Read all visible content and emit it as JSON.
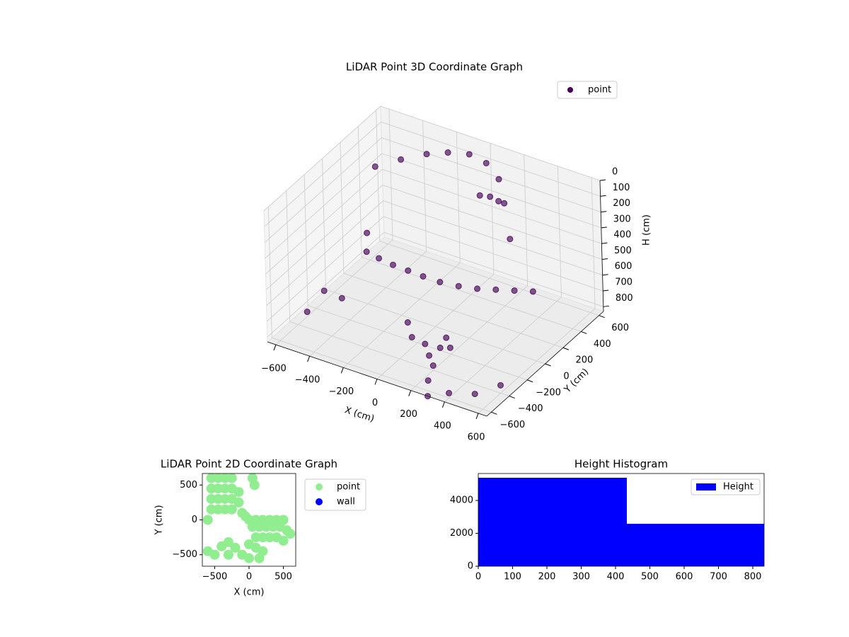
{
  "chart_data": [
    {
      "type": "scatter3d",
      "title": "LiDAR Point 3D Coordinate Graph",
      "xlabel": "X (cm)",
      "ylabel": "Y (cm)",
      "zlabel": "H (cm)",
      "xlim": [
        -650,
        650
      ],
      "ylim": [
        -650,
        650
      ],
      "zlim": [
        0,
        830
      ],
      "z_inverted": true,
      "xticks": [
        {
          "value": -600,
          "label": "−600"
        },
        {
          "value": -400,
          "label": "−400"
        },
        {
          "value": -200,
          "label": "−200"
        },
        0,
        200,
        400,
        600
      ],
      "yticks": [
        {
          "value": -600,
          "label": "−600"
        },
        {
          "value": -400,
          "label": "−400"
        },
        {
          "value": -200,
          "label": "−200"
        },
        0,
        200,
        400,
        600
      ],
      "zticks": [
        0,
        100,
        200,
        300,
        400,
        500,
        600,
        700,
        800
      ],
      "grid": true,
      "legend": "upper right",
      "series": [
        {
          "name": "point",
          "color": "#440154",
          "x": [
            -400,
            -300,
            -200,
            -100,
            0,
            100,
            200,
            300,
            400,
            500,
            600,
            -500,
            -400,
            -300,
            -200,
            -100,
            0,
            100,
            100,
            150,
            200,
            50,
            0,
            50,
            100,
            150,
            200,
            250,
            -600,
            -500,
            -550,
            400,
            500,
            600,
            300,
            200,
            250,
            300,
            -450,
            350
          ],
          "y": [
            0,
            -50,
            -80,
            -100,
            -120,
            -120,
            -100,
            -80,
            -60,
            -40,
            -20,
            300,
            400,
            500,
            550,
            600,
            600,
            550,
            450,
            450,
            420,
            430,
            -300,
            -350,
            -300,
            -350,
            -250,
            -300,
            -300,
            -100,
            -200,
            -600,
            -500,
            -400,
            -500,
            -400,
            -550,
            -650,
            100,
            200
          ],
          "z": [
            500,
            480,
            470,
            460,
            450,
            450,
            450,
            440,
            420,
            400,
            380,
            150,
            120,
            100,
            80,
            80,
            100,
            140,
            200,
            210,
            190,
            200,
            650,
            700,
            750,
            780,
            700,
            720,
            800,
            780,
            700,
            800,
            820,
            780,
            600,
            800,
            800,
            830,
            450,
            250
          ]
        }
      ]
    },
    {
      "type": "scatter",
      "title": "LiDAR Point 2D Coordinate Graph",
      "xlabel": "X (cm)",
      "ylabel": "Y (cm)",
      "xlim": [
        -680,
        680
      ],
      "ylim": [
        -665,
        665
      ],
      "xticks": [
        {
          "value": -500,
          "label": "−500"
        },
        0,
        500
      ],
      "yticks": [
        {
          "value": -500,
          "label": "−500"
        },
        0,
        500
      ],
      "legend": "outside upper right",
      "series": [
        {
          "name": "point",
          "color": "#90ee90",
          "x": [
            -550,
            -450,
            -350,
            -250,
            -550,
            -450,
            -350,
            -250,
            -150,
            -550,
            -450,
            -350,
            -250,
            -150,
            -550,
            -450,
            -350,
            -250,
            -100,
            -50,
            0,
            100,
            200,
            300,
            400,
            500,
            50,
            150,
            250,
            350,
            450,
            550,
            100,
            200,
            300,
            400,
            500,
            0,
            100,
            200,
            -100,
            -300,
            -500,
            -400,
            -300,
            -600,
            -200,
            0,
            150,
            50,
            80,
            600,
            -600
          ],
          "y": [
            600,
            600,
            600,
            600,
            450,
            450,
            450,
            450,
            400,
            300,
            300,
            300,
            300,
            250,
            150,
            150,
            150,
            150,
            100,
            50,
            0,
            0,
            0,
            0,
            0,
            0,
            -100,
            -100,
            -100,
            -100,
            -100,
            -150,
            -250,
            -250,
            -250,
            -250,
            -300,
            -350,
            -400,
            -450,
            -500,
            -500,
            -500,
            -380,
            -320,
            -450,
            -400,
            -550,
            -550,
            600,
            500,
            -200,
            0
          ]
        },
        {
          "name": "wall",
          "color": "#0000ff",
          "x": [],
          "y": []
        }
      ]
    },
    {
      "type": "histogram",
      "title": "Height Histogram",
      "name": "Height",
      "bins": [
        0,
        433,
        833
      ],
      "values": [
        5380,
        2580
      ],
      "color": "#0000ff",
      "xlim": [
        0,
        833
      ],
      "ylim": [
        0,
        5640
      ],
      "xticks": [
        0,
        100,
        200,
        300,
        400,
        500,
        600,
        700,
        800
      ],
      "yticks": [
        0,
        2000,
        4000
      ],
      "legend": "upper right"
    }
  ]
}
